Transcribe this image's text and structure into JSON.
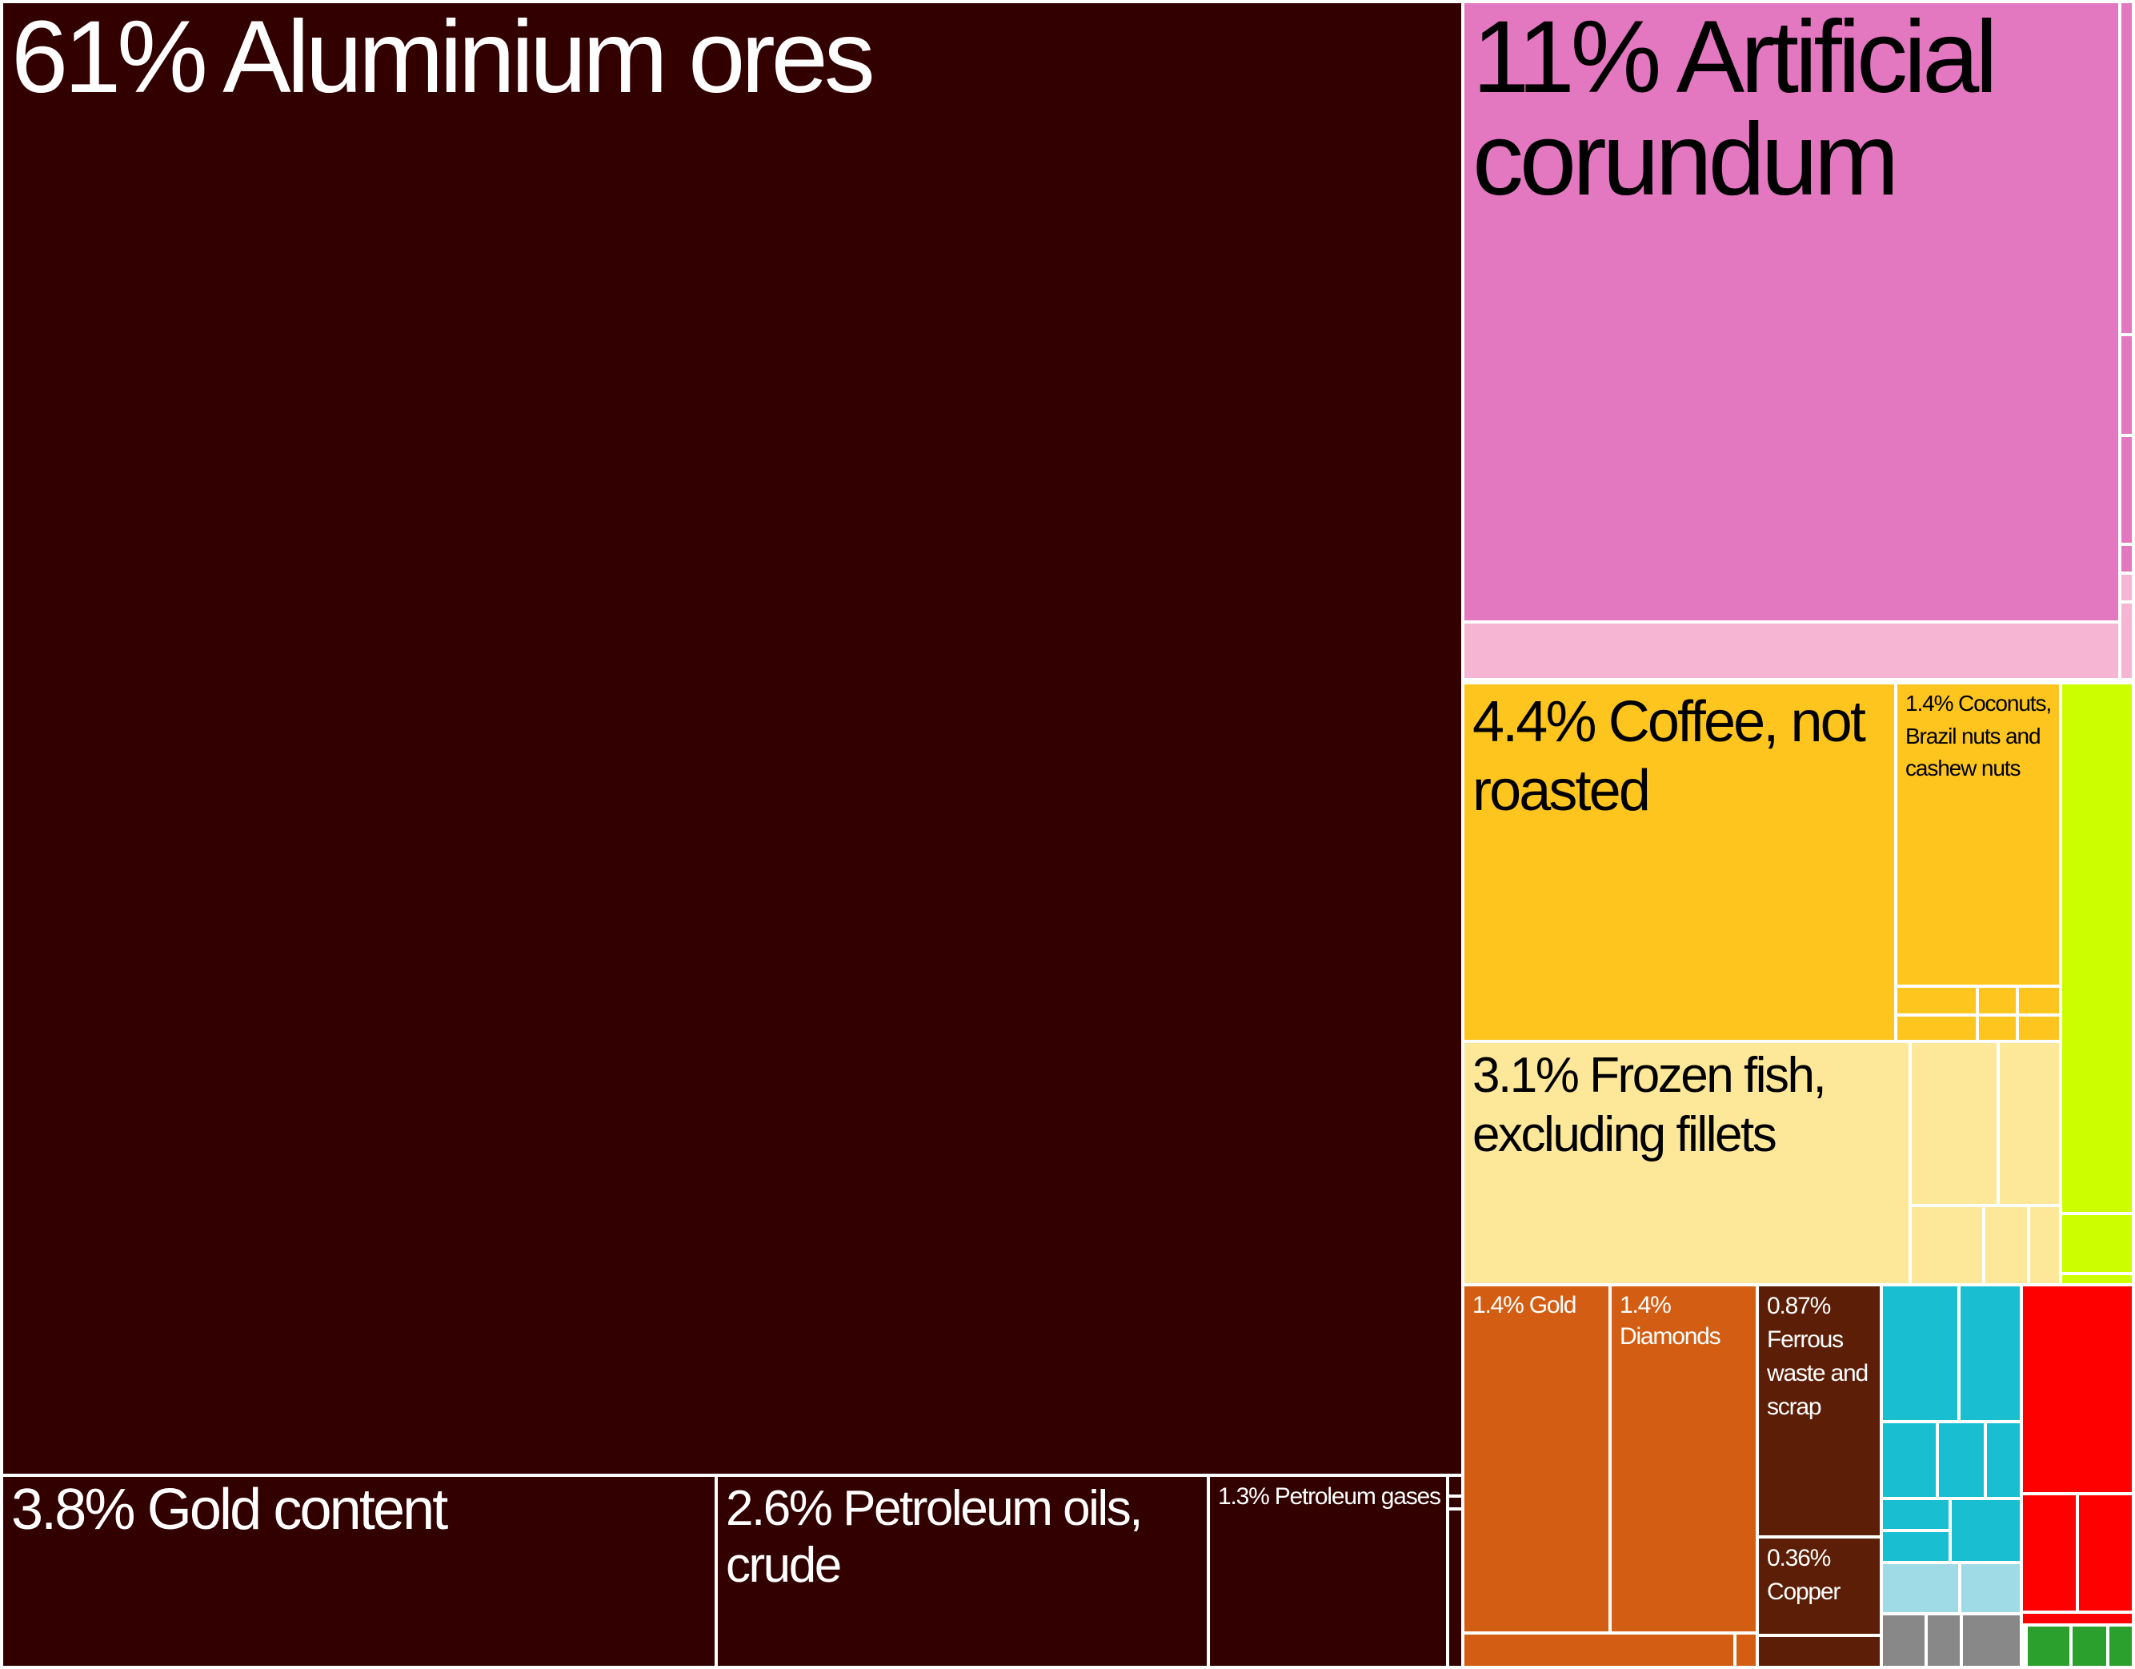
{
  "chart_data": {
    "type": "treemap",
    "colors": {
      "minerals": "#330000",
      "chemicals": "#e377c0",
      "chemicals_light": "#f6b6d3",
      "vegetables": "#fdc51e",
      "animal": "#fde799",
      "precious": "#d35e13",
      "metals": "#5c1e06",
      "machines": "#19bfd0",
      "machines_light": "#9edbe6",
      "instruments": "#888888",
      "textiles": "#2ca02c",
      "transport": "#ff0000",
      "foodstuffs": "#cdfe00"
    },
    "items": [
      {
        "label": "61% Aluminium ores",
        "value": 61,
        "group": "minerals"
      },
      {
        "label": "3.8% Gold content",
        "value": 3.8,
        "group": "minerals"
      },
      {
        "label": "2.6% Petroleum oils, crude",
        "value": 2.6,
        "group": "minerals"
      },
      {
        "label": "1.3% Petroleum gases",
        "value": 1.3,
        "group": "minerals"
      },
      {
        "label": "11% Artificial corundum",
        "value": 11,
        "group": "chemicals"
      },
      {
        "label": "4.4% Coffee, not roasted",
        "value": 4.4,
        "group": "vegetables"
      },
      {
        "label": "1.4% Coconuts, Brazil nuts and cashew nuts",
        "value": 1.4,
        "group": "vegetables"
      },
      {
        "label": "3.1% Frozen fish, excluding fillets",
        "value": 3.1,
        "group": "animal"
      },
      {
        "label": "1.4% Gold",
        "value": 1.4,
        "group": "precious"
      },
      {
        "label": "1.4% Diamonds",
        "value": 1.4,
        "group": "precious"
      },
      {
        "label": "0.87% Ferrous waste and scrap",
        "value": 0.87,
        "group": "metals"
      },
      {
        "label": "0.36% Copper",
        "value": 0.36,
        "group": "metals"
      }
    ]
  }
}
